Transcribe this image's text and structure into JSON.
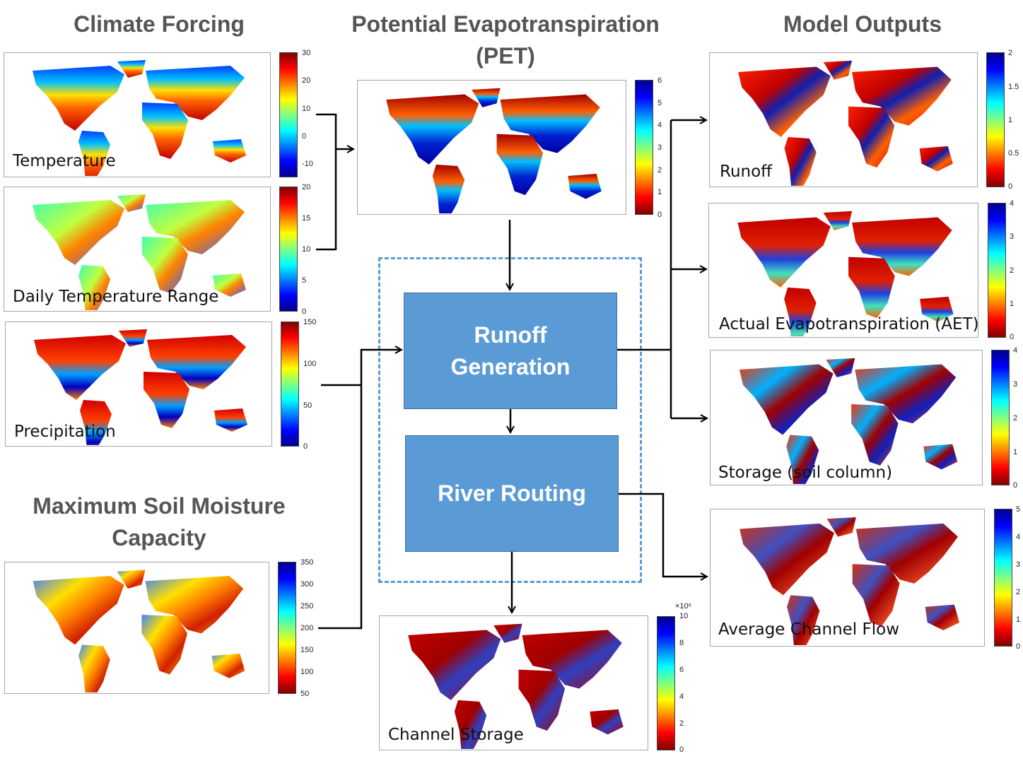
{
  "headings": {
    "climate_forcing": "Climate Forcing",
    "pet": "Potential Evapotranspiration (PET)",
    "model_outputs": "Model Outputs",
    "soil_moisture": "Maximum Soil Moisture Capacity"
  },
  "panels": {
    "temperature": {
      "label": "Temperature",
      "ticks": [
        "30",
        "20",
        "10",
        "0",
        "-10"
      ]
    },
    "dtr": {
      "label": "Daily Temperature Range",
      "ticks": [
        "20",
        "15",
        "10",
        "5",
        "0"
      ]
    },
    "precipitation": {
      "label": "Precipitation",
      "ticks": [
        "150",
        "100",
        "50",
        "0"
      ]
    },
    "soil": {
      "label": "",
      "ticks": [
        "350",
        "300",
        "250",
        "200",
        "150",
        "100",
        "50"
      ]
    },
    "pet": {
      "label": "",
      "ticks": [
        "6",
        "5",
        "4",
        "3",
        "2",
        "1",
        "0"
      ]
    },
    "runoff": {
      "label": "Runoff",
      "ticks": [
        "2",
        "1.5",
        "1",
        "0.5",
        "0"
      ]
    },
    "aet": {
      "label": "Actual Evapotranspiration (AET)",
      "ticks": [
        "4",
        "3",
        "2",
        "1",
        "0"
      ]
    },
    "storage": {
      "label": "Storage (soil column)",
      "ticks": [
        "4",
        "3",
        "2",
        "1",
        "0"
      ]
    },
    "channel_flow": {
      "label": "Average Channel Flow",
      "ticks": [
        "5",
        "4",
        "3",
        "2",
        "1",
        "0"
      ]
    },
    "channel_storage": {
      "label": "Channel Storage",
      "ticks": [
        "10",
        "8",
        "6",
        "4",
        "2",
        "0"
      ],
      "multiplier": "×10⁶"
    }
  },
  "processes": {
    "runoff_generation": "Runoff Generation",
    "river_routing": "River Routing"
  },
  "colors": {
    "process_fill": "#5b9bd5",
    "heading_text": "#555555",
    "dashed_border": "#5b9bd5"
  }
}
